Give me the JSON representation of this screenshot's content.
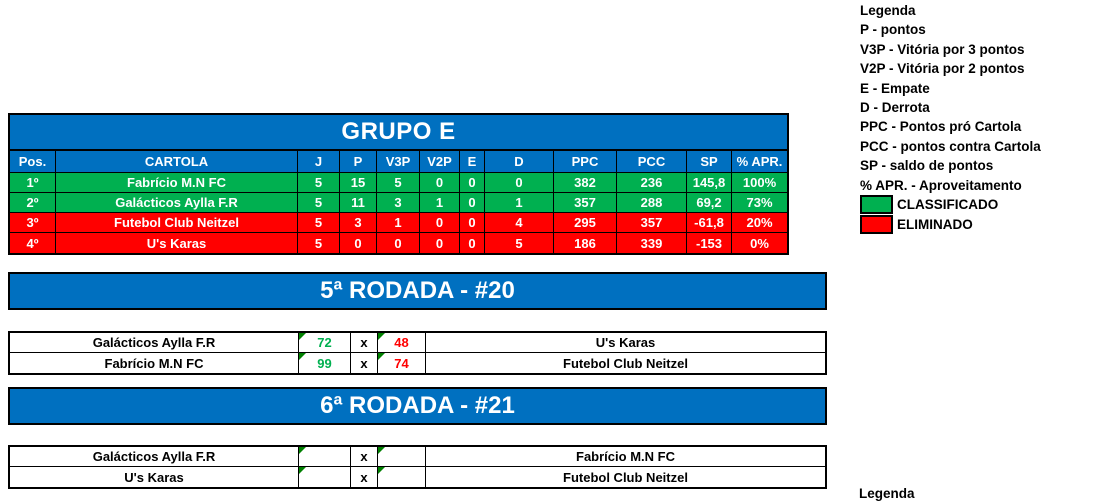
{
  "group_table": {
    "title": "GRUPO E",
    "columns": [
      "Pos.",
      "CARTOLA",
      "J",
      "P",
      "V3P",
      "V2P",
      "E",
      "D",
      "PPC",
      "PCC",
      "SP",
      "% APR."
    ],
    "rows": [
      {
        "pos": "1º",
        "cartola": "Fabrício M.N FC",
        "j": "5",
        "p": "15",
        "v3p": "5",
        "v2p": "0",
        "e": "0",
        "d": "0",
        "ppc": "382",
        "pcc": "236",
        "sp": "145,8",
        "apr": "100%",
        "status": "CLASSIFICADO"
      },
      {
        "pos": "2º",
        "cartola": "Galácticos Aylla F.R",
        "j": "5",
        "p": "11",
        "v3p": "3",
        "v2p": "1",
        "e": "0",
        "d": "1",
        "ppc": "357",
        "pcc": "288",
        "sp": "69,2",
        "apr": "73%",
        "status": "CLASSIFICADO"
      },
      {
        "pos": "3º",
        "cartola": "Futebol Club Neitzel",
        "j": "5",
        "p": "3",
        "v3p": "1",
        "v2p": "0",
        "e": "0",
        "d": "4",
        "ppc": "295",
        "pcc": "357",
        "sp": "-61,8",
        "apr": "20%",
        "status": "ELIMINADO"
      },
      {
        "pos": "4º",
        "cartola": "U's Karas",
        "j": "5",
        "p": "0",
        "v3p": "0",
        "v2p": "0",
        "e": "0",
        "d": "5",
        "ppc": "186",
        "pcc": "339",
        "sp": "-153",
        "apr": "0%",
        "status": "ELIMINADO"
      }
    ]
  },
  "legend": {
    "title": "Legenda",
    "items": [
      "P - pontos",
      "V3P - Vitória por 3 pontos",
      "V2P - Vitória por 2 pontos",
      "E - Empate",
      "D - Derrota",
      "PPC - Pontos pró Cartola",
      "PCC - pontos contra Cartola",
      "SP - saldo de pontos",
      "% APR. - Aproveitamento"
    ],
    "classified_label": "CLASSIFICADO",
    "eliminated_label": "ELIMINADO"
  },
  "rounds": [
    {
      "title": "5ª RODADA - #20",
      "matches": [
        {
          "home": "Galácticos Aylla F.R",
          "home_score": "72",
          "separator": "x",
          "away_score": "48",
          "away": "U's Karas"
        },
        {
          "home": "Fabrício M.N FC",
          "home_score": "99",
          "separator": "x",
          "away_score": "74",
          "away": "Futebol Club Neitzel"
        }
      ]
    },
    {
      "title": "6ª RODADA - #21",
      "matches": [
        {
          "home": "Galácticos Aylla F.R",
          "home_score": "",
          "separator": "x",
          "away_score": "",
          "away": "Fabrício M.N FC"
        },
        {
          "home": "U's Karas",
          "home_score": "",
          "separator": "x",
          "away_score": "",
          "away": "Futebol Club Neitzel"
        }
      ]
    }
  ],
  "footer_partial": "Legenda",
  "colors": {
    "header_blue": "#0070C0",
    "classified_green": "#00B050",
    "eliminated_red": "#FF0000",
    "home_score_green": "#00B050",
    "away_score_red": "#FF0000",
    "error_marker_green": "#008000"
  }
}
